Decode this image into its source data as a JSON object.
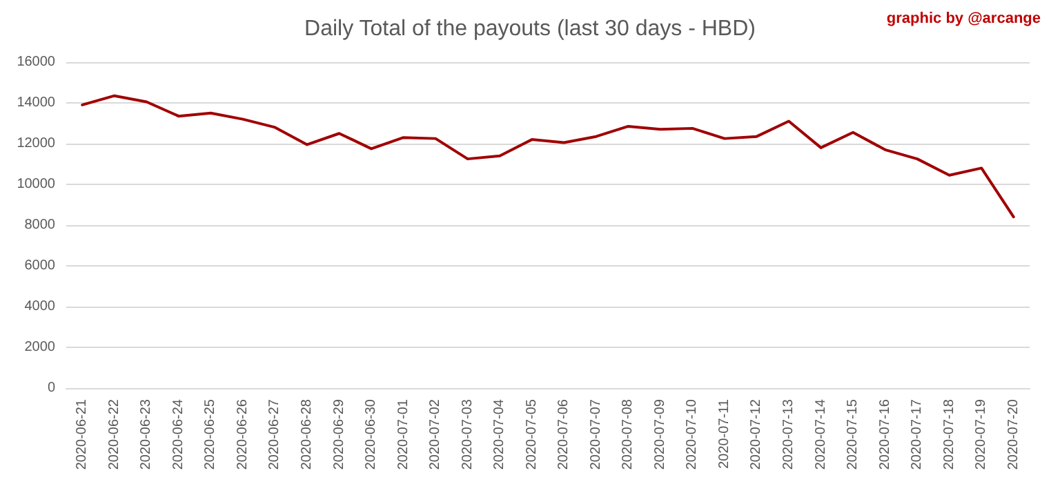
{
  "chart_data": {
    "type": "line",
    "title": "Daily Total of the payouts (last 30 days - HBD)",
    "annotations": [
      "graphic by @arcange"
    ],
    "categories": [
      "2020-06-21",
      "2020-06-22",
      "2020-06-23",
      "2020-06-24",
      "2020-06-25",
      "2020-06-26",
      "2020-06-27",
      "2020-06-28",
      "2020-06-29",
      "2020-06-30",
      "2020-07-01",
      "2020-07-02",
      "2020-07-03",
      "2020-07-04",
      "2020-07-05",
      "2020-07-06",
      "2020-07-07",
      "2020-07-08",
      "2020-07-09",
      "2020-07-10",
      "2020-07-11",
      "2020-07-12",
      "2020-07-13",
      "2020-07-14",
      "2020-07-15",
      "2020-07-16",
      "2020-07-17",
      "2020-07-18",
      "2020-07-19",
      "2020-07-20"
    ],
    "series": [
      {
        "color": "#a00000",
        "values": [
          13900,
          14350,
          14050,
          13350,
          13500,
          13200,
          12800,
          11950,
          12500,
          11750,
          12300,
          12250,
          11250,
          11400,
          12200,
          12050,
          12350,
          12850,
          12700,
          12750,
          12250,
          12350,
          13100,
          11800,
          12550,
          11700,
          11250,
          10450,
          10800,
          8400
        ]
      }
    ],
    "ylim": [
      0,
      16000
    ],
    "yticks": [
      0,
      2000,
      4000,
      6000,
      8000,
      10000,
      12000,
      14000,
      16000
    ],
    "grid": "y",
    "marker": "none",
    "line_style": "solid"
  }
}
